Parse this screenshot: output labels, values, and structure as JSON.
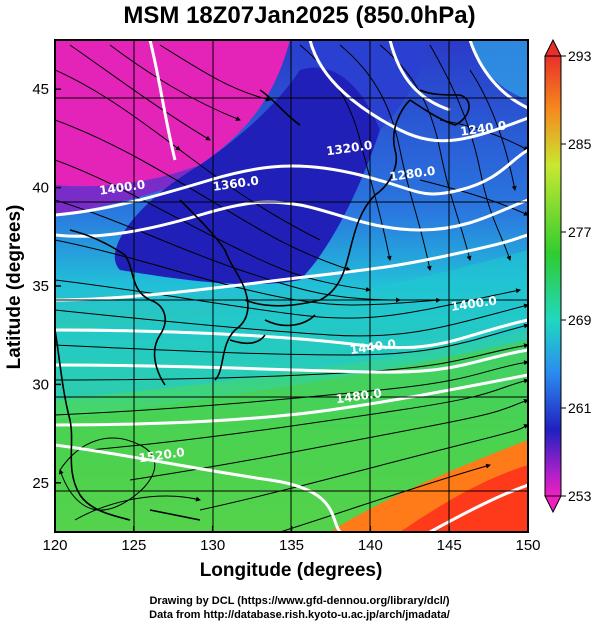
{
  "title": "MSM 18Z07Jan2025 (850.0hPa)",
  "xaxis": {
    "label": "Longitude (degrees)",
    "range": [
      120,
      150
    ],
    "ticks": [
      "120",
      "125",
      "130",
      "135",
      "140",
      "145",
      "150"
    ]
  },
  "yaxis": {
    "label": "Latitude  (degrees)",
    "range": [
      22.5,
      47.5
    ],
    "ticks": [
      "25",
      "30",
      "35",
      "40",
      "45"
    ]
  },
  "colorbar": {
    "range": [
      253,
      293
    ],
    "ticks": [
      "293",
      "285",
      "277",
      "269",
      "261",
      "253"
    ]
  },
  "contours": [
    {
      "label": "1320.0",
      "lon": 138.7,
      "lat": 41.8
    },
    {
      "label": "1360.0",
      "lon": 131.5,
      "lat": 40.0
    },
    {
      "label": "1400.0",
      "lon": 124.3,
      "lat": 39.8
    },
    {
      "label": "1280.0",
      "lon": 142.7,
      "lat": 40.5
    },
    {
      "label": "1240.0",
      "lon": 147.2,
      "lat": 42.8
    },
    {
      "label": "1400.0",
      "lon": 146.6,
      "lat": 33.9
    },
    {
      "label": "1440.0",
      "lon": 140.2,
      "lat": 31.7
    },
    {
      "label": "1480.0",
      "lon": 139.3,
      "lat": 29.2
    },
    {
      "label": "1520.0",
      "lon": 126.8,
      "lat": 26.2
    }
  ],
  "credits": {
    "line1": "Drawing by DCL (https://www.gfd-dennou.org/library/dcl/)",
    "line2": "Data from http://database.rish.kyoto-u.ac.jp/arch/jmadata/"
  }
}
